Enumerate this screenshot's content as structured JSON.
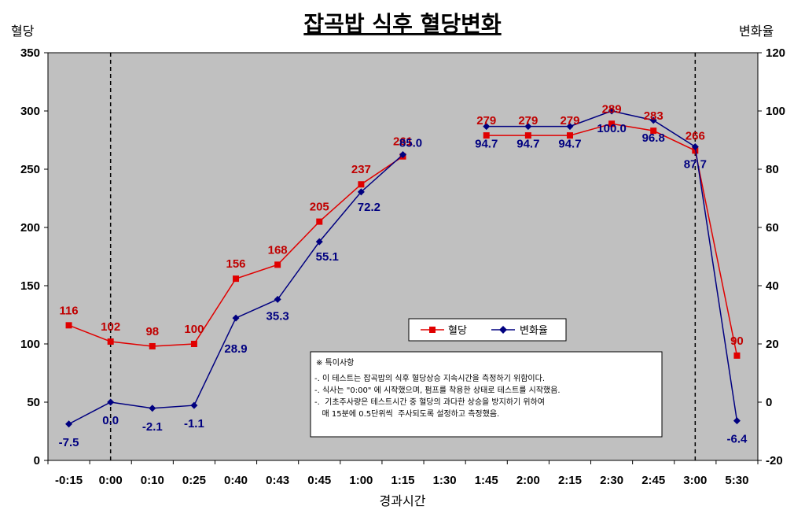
{
  "chart_data": {
    "type": "line",
    "title": "잡곡밥 식후 혈당변화",
    "ylabel_left": "혈당",
    "ylabel_right": "변화율",
    "xlabel": "경과시간",
    "ylim_left": [
      0,
      350
    ],
    "yticks_left": [
      0,
      50,
      100,
      150,
      200,
      250,
      300,
      350
    ],
    "ylim_right": [
      -20,
      120
    ],
    "yticks_right": [
      -20,
      0,
      20,
      40,
      60,
      80,
      100,
      120
    ],
    "categories": [
      "-0:15",
      "0:00",
      "0:10",
      "0:25",
      "0:40",
      "0:43",
      "0:45",
      "1:00",
      "1:15",
      "1:30",
      "1:45",
      "2:00",
      "2:15",
      "2:30",
      "2:45",
      "3:00",
      "5:30"
    ],
    "series": [
      {
        "name": "혈당",
        "axis": "left",
        "color": "#e00000",
        "values": [
          116,
          102,
          98,
          100,
          156,
          168,
          205,
          237,
          261,
          null,
          279,
          279,
          279,
          289,
          283,
          266,
          90
        ],
        "labels": [
          "116",
          "102",
          "98",
          "100",
          "156",
          "168",
          "205",
          "237",
          "261",
          "",
          "279",
          "279",
          "279",
          "289",
          "283",
          "266",
          "90"
        ]
      },
      {
        "name": "변화율",
        "axis": "right",
        "color": "#000080",
        "values": [
          -7.5,
          0.0,
          -2.1,
          -1.1,
          28.9,
          35.3,
          55.1,
          72.2,
          85.0,
          null,
          94.7,
          94.7,
          94.7,
          100.0,
          96.8,
          87.7,
          -6.4
        ],
        "labels": [
          "-7.5",
          "0.0",
          "-2.1",
          "-1.1",
          "28.9",
          "35.3",
          "55.1",
          "72.2",
          "85.0",
          "",
          "94.7",
          "94.7",
          "94.7",
          "100.0",
          "96.8",
          "87.7",
          "-6.4"
        ]
      }
    ],
    "vertical_dashed_lines_at": [
      "0:00",
      "3:00"
    ],
    "legend": [
      "혈당",
      "변화율"
    ],
    "note": {
      "title": "※ 특이사항",
      "lines": [
        "-. 이 테스트는 잡곡밥의 식후 혈당상승 지속시간을 측정하기 위함이다.",
        "-. 식사는 \"0:00\" 에 시작했으며, 펌프를 착용한 상태로 테스트를 시작했음.",
        "-.  기초주사량은 테스트시간 중 혈당의 과다한 상승을 방지하기 위하여",
        "   매 15분에 0.5단위씩  주사되도록 설정하고 측정했음."
      ]
    }
  }
}
